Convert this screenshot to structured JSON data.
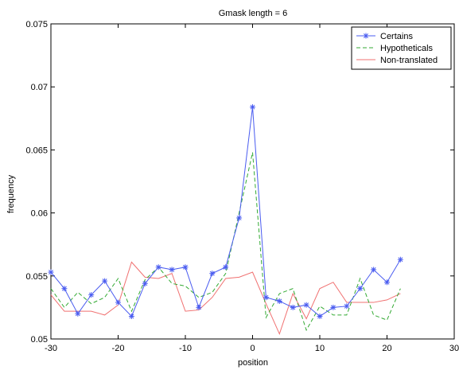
{
  "chart_data": {
    "type": "line",
    "title": "Gmask length = 6",
    "xlabel": "position",
    "ylabel": "frequency",
    "xlim": [
      -30,
      30
    ],
    "ylim": [
      0.05,
      0.075
    ],
    "xticks": [
      "-30",
      "-20",
      "-10",
      "0",
      "10",
      "20",
      "30"
    ],
    "yticks": [
      "0.05",
      "0.055",
      "0.06",
      "0.065",
      "0.07",
      "0.075"
    ],
    "grid": false,
    "legend_position": "top-right",
    "x": [
      -30,
      -28,
      -26,
      -24,
      -22,
      -20,
      -18,
      -16,
      -14,
      -12,
      -10,
      -8,
      -6,
      -4,
      -2,
      0,
      2,
      4,
      6,
      8,
      10,
      12,
      14,
      16,
      18,
      20,
      22
    ],
    "series": [
      {
        "name": "Certains",
        "color": "#4a5cf0",
        "style": "solid",
        "marker": "asterisk",
        "values": [
          0.0553,
          0.054,
          0.052,
          0.0535,
          0.0546,
          0.0529,
          0.0518,
          0.0544,
          0.0557,
          0.0555,
          0.0557,
          0.0525,
          0.0552,
          0.0557,
          0.0596,
          0.0684,
          0.0533,
          0.053,
          0.0525,
          0.0527,
          0.0518,
          0.0525,
          0.0526,
          0.054,
          0.0555,
          0.0545,
          0.0563
        ]
      },
      {
        "name": "Hypotheticals",
        "color": "#33aa33",
        "style": "dashed",
        "marker": "none",
        "values": [
          0.054,
          0.0525,
          0.0537,
          0.0528,
          0.0533,
          0.0548,
          0.0522,
          0.0547,
          0.0557,
          0.0544,
          0.0542,
          0.0533,
          0.0537,
          0.0552,
          0.06,
          0.0648,
          0.0517,
          0.0536,
          0.054,
          0.0507,
          0.0526,
          0.0519,
          0.0519,
          0.0548,
          0.0519,
          0.0515,
          0.054
        ]
      },
      {
        "name": "Non-translated",
        "color": "#f07070",
        "style": "solid",
        "marker": "none",
        "values": [
          0.0535,
          0.0522,
          0.0522,
          0.0522,
          0.0519,
          0.0527,
          0.0561,
          0.0549,
          0.0548,
          0.0552,
          0.0522,
          0.0523,
          0.0533,
          0.0548,
          0.0549,
          0.0553,
          0.0528,
          0.0504,
          0.0536,
          0.0516,
          0.054,
          0.0545,
          0.0529,
          0.0529,
          0.0529,
          0.0531,
          0.0536
        ]
      }
    ]
  }
}
